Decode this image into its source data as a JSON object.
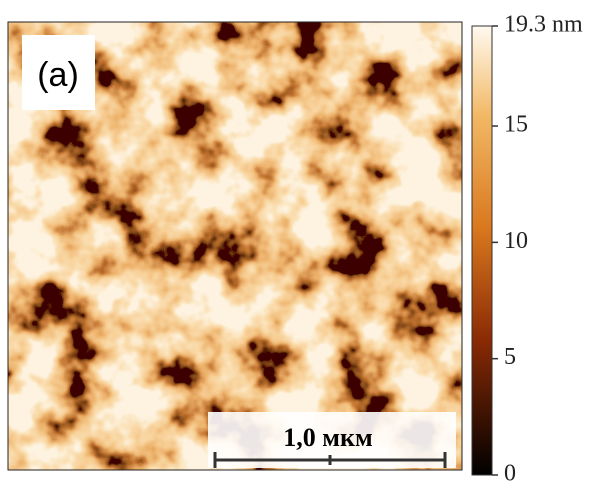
{
  "image": {
    "label": "(a)",
    "scale_bar": "1,0 мкм"
  },
  "colorbar": {
    "lim": [
      0,
      19.3
    ],
    "ticks": [
      0,
      5,
      10,
      15,
      {
        "value": 19.3,
        "label": "19.3 nm"
      }
    ]
  }
}
